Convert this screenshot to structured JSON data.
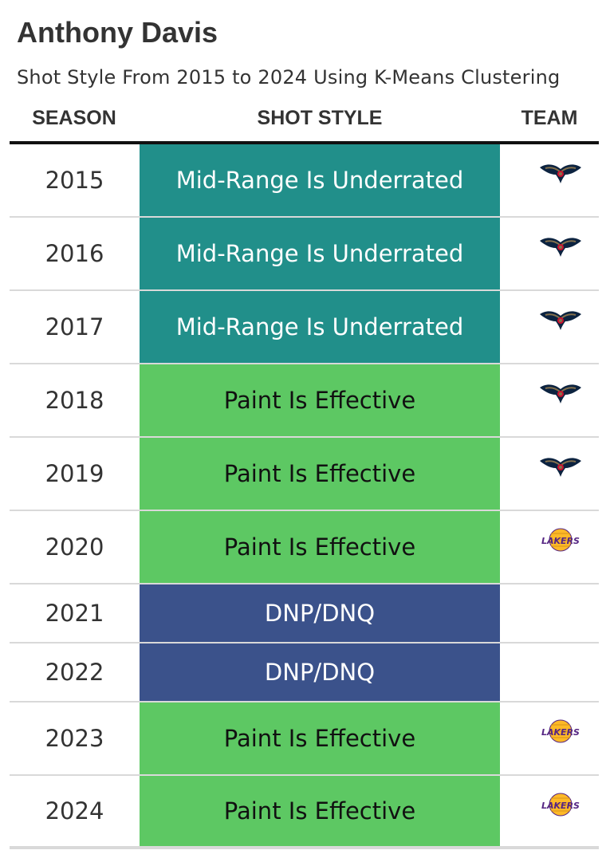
{
  "title": "Anthony Davis",
  "subtitle": "Shot Style From 2015 to 2024 Using K-Means Clustering",
  "columns": {
    "season": "SEASON",
    "style": "SHOT STYLE",
    "team": "TEAM"
  },
  "colors": {
    "Mid-Range Is Underrated": {
      "bg": "#218f8a",
      "fg": "#ffffff"
    },
    "Paint Is Effective": {
      "bg": "#5dc863",
      "fg": "#111111"
    },
    "DNP/DNQ": {
      "bg": "#3b528b",
      "fg": "#ffffff"
    }
  },
  "chart_data": {
    "type": "table",
    "rows": [
      {
        "season": "2015",
        "style": "Mid-Range Is Underrated",
        "team": "pelicans"
      },
      {
        "season": "2016",
        "style": "Mid-Range Is Underrated",
        "team": "pelicans"
      },
      {
        "season": "2017",
        "style": "Mid-Range Is Underrated",
        "team": "pelicans"
      },
      {
        "season": "2018",
        "style": "Paint Is Effective",
        "team": "pelicans"
      },
      {
        "season": "2019",
        "style": "Paint Is Effective",
        "team": "pelicans"
      },
      {
        "season": "2020",
        "style": "Paint Is Effective",
        "team": "lakers"
      },
      {
        "season": "2021",
        "style": "DNP/DNQ",
        "team": ""
      },
      {
        "season": "2022",
        "style": "DNP/DNQ",
        "team": ""
      },
      {
        "season": "2023",
        "style": "Paint Is Effective",
        "team": "lakers"
      },
      {
        "season": "2024",
        "style": "Paint Is Effective",
        "team": "lakers"
      }
    ]
  }
}
